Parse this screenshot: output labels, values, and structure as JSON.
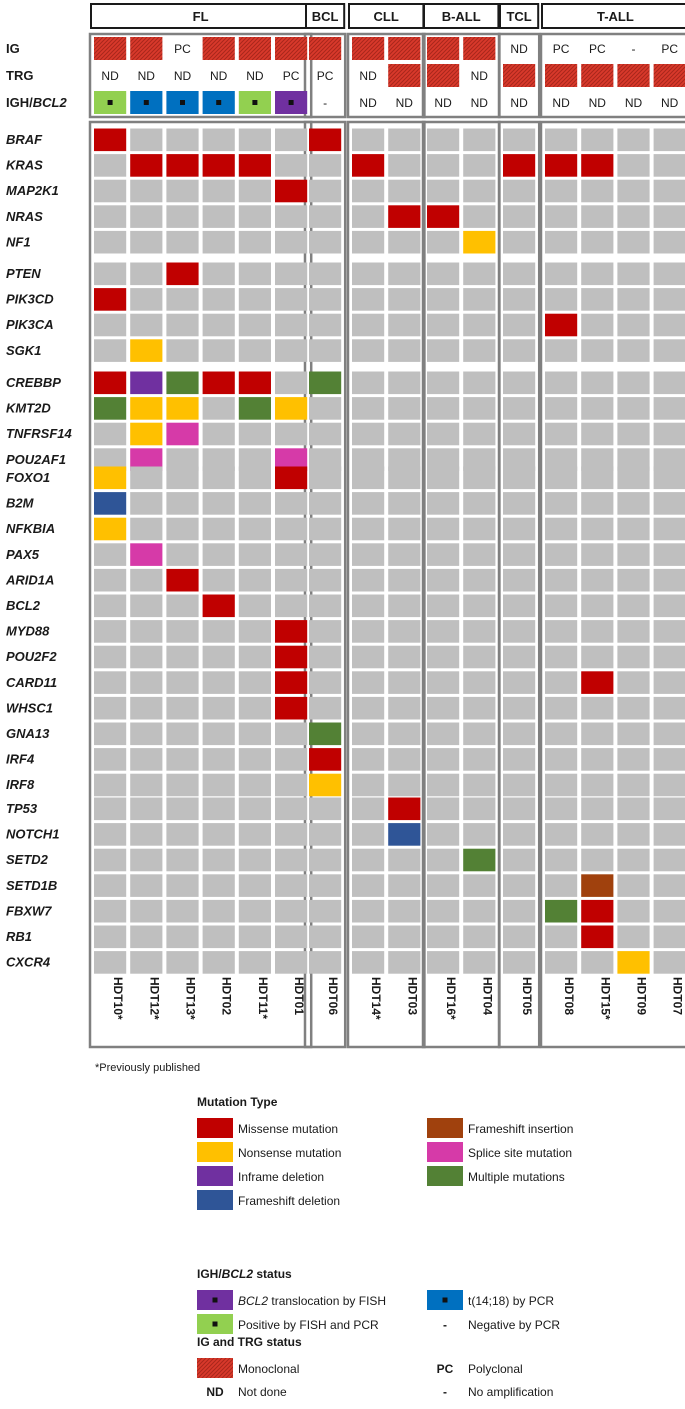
{
  "chart_data": {
    "type": "heatmap",
    "groups": [
      {
        "name": "FL",
        "samples": [
          "HDT10*",
          "HDT12*",
          "HDT13*",
          "HDT02",
          "HDT11*",
          "HDT01"
        ]
      },
      {
        "name": "BCL",
        "samples": [
          "HDT06"
        ]
      },
      {
        "name": "CLL",
        "samples": [
          "HDT14*",
          "HDT03"
        ]
      },
      {
        "name": "B-ALL",
        "samples": [
          "HDT16*",
          "HDT04"
        ]
      },
      {
        "name": "TCL",
        "samples": [
          "HDT05"
        ]
      },
      {
        "name": "T-ALL",
        "samples": [
          "HDT08",
          "HDT15*",
          "HDT09",
          "HDT07"
        ]
      }
    ],
    "top_rows": [
      {
        "label": "IG",
        "values": [
          "M",
          "M",
          "PC",
          "M",
          "M",
          "M",
          "M",
          "M",
          "M",
          "M",
          "M",
          "ND",
          "PC",
          "PC",
          "-",
          "PC"
        ]
      },
      {
        "label": "TRG",
        "values": [
          "ND",
          "ND",
          "ND",
          "ND",
          "ND",
          "PC",
          "PC",
          "ND",
          "M",
          "M",
          "ND",
          "M",
          "M",
          "M",
          "M",
          "M"
        ]
      },
      {
        "label": "IGH/BCL2",
        "label_prefix": "IGH/",
        "label_suffix": "BCL2",
        "values": [
          "FP",
          "TP",
          "TP",
          "TP",
          "FP",
          "TF",
          "-",
          "ND",
          "ND",
          "ND",
          "ND",
          "ND",
          "ND",
          "ND",
          "ND",
          "ND"
        ]
      }
    ],
    "gene_blocks": [
      [
        "BRAF",
        "KRAS",
        "MAP2K1",
        "NRAS",
        "NF1"
      ],
      [
        "PTEN",
        "PIK3CD",
        "PIK3CA",
        "SGK1"
      ],
      [
        "CREBBP",
        "KMT2D",
        "TNFRSF14",
        "POU2AF1"
      ],
      [
        "FOXO1",
        "B2M",
        "NFKBIA",
        "PAX5",
        "ARID1A",
        "BCL2",
        "MYD88",
        "POU2F2",
        "CARD11",
        "WHSC1",
        "GNA13",
        "IRF4",
        "IRF8"
      ],
      [
        "TP53",
        "NOTCH1",
        "SETD2",
        "SETD1B",
        "FBXW7",
        "RB1",
        "CXCR4"
      ]
    ],
    "mutations": [
      {
        "gene": "BRAF",
        "sample": 0,
        "type": "mis"
      },
      {
        "gene": "BRAF",
        "sample": 6,
        "type": "mis"
      },
      {
        "gene": "KRAS",
        "sample": 1,
        "type": "mis"
      },
      {
        "gene": "KRAS",
        "sample": 2,
        "type": "mis"
      },
      {
        "gene": "KRAS",
        "sample": 3,
        "type": "mis"
      },
      {
        "gene": "KRAS",
        "sample": 4,
        "type": "mis"
      },
      {
        "gene": "KRAS",
        "sample": 7,
        "type": "mis"
      },
      {
        "gene": "KRAS",
        "sample": 11,
        "type": "mis"
      },
      {
        "gene": "KRAS",
        "sample": 12,
        "type": "mis"
      },
      {
        "gene": "KRAS",
        "sample": 13,
        "type": "mis"
      },
      {
        "gene": "MAP2K1",
        "sample": 5,
        "type": "mis"
      },
      {
        "gene": "NRAS",
        "sample": 8,
        "type": "mis"
      },
      {
        "gene": "NRAS",
        "sample": 9,
        "type": "mis"
      },
      {
        "gene": "NF1",
        "sample": 10,
        "type": "non"
      },
      {
        "gene": "PTEN",
        "sample": 2,
        "type": "mis"
      },
      {
        "gene": "PIK3CD",
        "sample": 0,
        "type": "mis"
      },
      {
        "gene": "PIK3CA",
        "sample": 12,
        "type": "mis"
      },
      {
        "gene": "SGK1",
        "sample": 1,
        "type": "non"
      },
      {
        "gene": "CREBBP",
        "sample": 0,
        "type": "mis"
      },
      {
        "gene": "CREBBP",
        "sample": 1,
        "type": "inf"
      },
      {
        "gene": "CREBBP",
        "sample": 2,
        "type": "mul"
      },
      {
        "gene": "CREBBP",
        "sample": 3,
        "type": "mis"
      },
      {
        "gene": "CREBBP",
        "sample": 4,
        "type": "mis"
      },
      {
        "gene": "CREBBP",
        "sample": 6,
        "type": "mul"
      },
      {
        "gene": "KMT2D",
        "sample": 0,
        "type": "mul"
      },
      {
        "gene": "KMT2D",
        "sample": 1,
        "type": "non"
      },
      {
        "gene": "KMT2D",
        "sample": 2,
        "type": "non"
      },
      {
        "gene": "KMT2D",
        "sample": 4,
        "type": "mul"
      },
      {
        "gene": "KMT2D",
        "sample": 5,
        "type": "non"
      },
      {
        "gene": "TNFRSF14",
        "sample": 1,
        "type": "non"
      },
      {
        "gene": "TNFRSF14",
        "sample": 2,
        "type": "spl"
      },
      {
        "gene": "POU2AF1",
        "sample": 1,
        "type": "spl"
      },
      {
        "gene": "POU2AF1",
        "sample": 5,
        "type": "spl"
      },
      {
        "gene": "FOXO1",
        "sample": 0,
        "type": "non"
      },
      {
        "gene": "FOXO1",
        "sample": 5,
        "type": "mis"
      },
      {
        "gene": "B2M",
        "sample": 0,
        "type": "fsd"
      },
      {
        "gene": "NFKBIA",
        "sample": 0,
        "type": "non"
      },
      {
        "gene": "PAX5",
        "sample": 1,
        "type": "spl"
      },
      {
        "gene": "ARID1A",
        "sample": 2,
        "type": "mis"
      },
      {
        "gene": "BCL2",
        "sample": 3,
        "type": "mis"
      },
      {
        "gene": "MYD88",
        "sample": 5,
        "type": "mis"
      },
      {
        "gene": "POU2F2",
        "sample": 5,
        "type": "mis"
      },
      {
        "gene": "CARD11",
        "sample": 5,
        "type": "mis"
      },
      {
        "gene": "CARD11",
        "sample": 13,
        "type": "mis"
      },
      {
        "gene": "WHSC1",
        "sample": 5,
        "type": "mis"
      },
      {
        "gene": "GNA13",
        "sample": 6,
        "type": "mul"
      },
      {
        "gene": "IRF4",
        "sample": 6,
        "type": "mis"
      },
      {
        "gene": "IRF8",
        "sample": 6,
        "type": "non"
      },
      {
        "gene": "TP53",
        "sample": 8,
        "type": "mis"
      },
      {
        "gene": "NOTCH1",
        "sample": 8,
        "type": "fsd"
      },
      {
        "gene": "SETD2",
        "sample": 10,
        "type": "mul"
      },
      {
        "gene": "SETD1B",
        "sample": 13,
        "type": "fsi"
      },
      {
        "gene": "FBXW7",
        "sample": 12,
        "type": "mul"
      },
      {
        "gene": "FBXW7",
        "sample": 13,
        "type": "mis"
      },
      {
        "gene": "RB1",
        "sample": 13,
        "type": "mis"
      },
      {
        "gene": "CXCR4",
        "sample": 14,
        "type": "non"
      }
    ],
    "mutation_colors": {
      "mis": "#c00000",
      "non": "#ffc000",
      "inf": "#7030a0",
      "fsd": "#2f5597",
      "fsi": "#a0410d",
      "spl": "#d63aa8",
      "mul": "#538135",
      "empty": "#bfbfbf"
    },
    "status_colors": {
      "mono": "#d9392b",
      "tp": "#0070c0",
      "tf": "#7030a0",
      "fp": "#92d050"
    }
  },
  "footnote": "*Previously published",
  "legend": {
    "mutation_title": "Mutation Type",
    "mutation_items": [
      {
        "key": "mis",
        "label": "Missense mutation"
      },
      {
        "key": "fsi",
        "label": "Frameshift insertion"
      },
      {
        "key": "non",
        "label": "Nonsense mutation"
      },
      {
        "key": "spl",
        "label": "Splice site mutation"
      },
      {
        "key": "inf",
        "label": "Inframe deletion"
      },
      {
        "key": "mul",
        "label": "Multiple mutations"
      },
      {
        "key": "fsd",
        "label": "Frameshift deletion"
      }
    ],
    "igh_title_prefix": "IGH/",
    "igh_title_italic": "BCL2",
    "igh_title_suffix": " status",
    "igh_items": {
      "tf_italic": "BCL2",
      "tf_rest": " translocation by FISH",
      "tp": "t(14;18) by PCR",
      "fp": "Positive by FISH and PCR",
      "neg_symbol": "-",
      "neg": "Negative by PCR"
    },
    "ig_title": "IG and TRG status",
    "ig_items": {
      "mono": "Monoclonal",
      "pc_symbol": "PC",
      "pc": "Polyclonal",
      "nd_symbol": "ND",
      "nd": "Not done",
      "na_symbol": "-",
      "na": "No amplification"
    }
  }
}
